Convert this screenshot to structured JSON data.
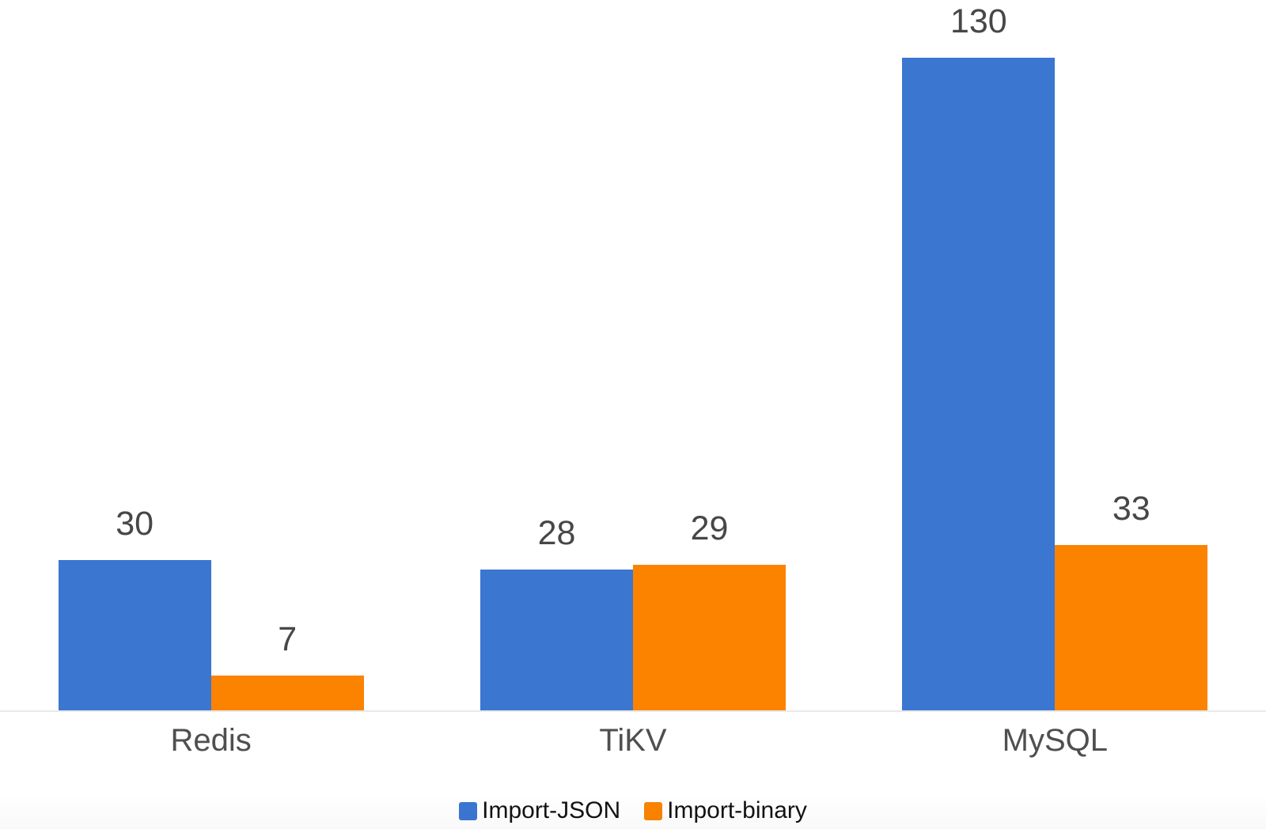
{
  "chart_data": {
    "type": "bar",
    "title": "",
    "xlabel": "",
    "ylabel": "",
    "categories": [
      "Redis",
      "TiKV",
      "MySQL"
    ],
    "series": [
      {
        "name": "Import-JSON",
        "color": "#3b76d1",
        "values": [
          30,
          28,
          130
        ]
      },
      {
        "name": "Import-binary",
        "color": "#fb8300",
        "values": [
          7,
          29,
          33
        ]
      }
    ],
    "value_labels_shown": true,
    "ylim": [
      0,
      130
    ],
    "grid": false,
    "y_axis_shown": false,
    "legend_position": "bottom-center",
    "axis_line_color": "#e9e9e9"
  }
}
